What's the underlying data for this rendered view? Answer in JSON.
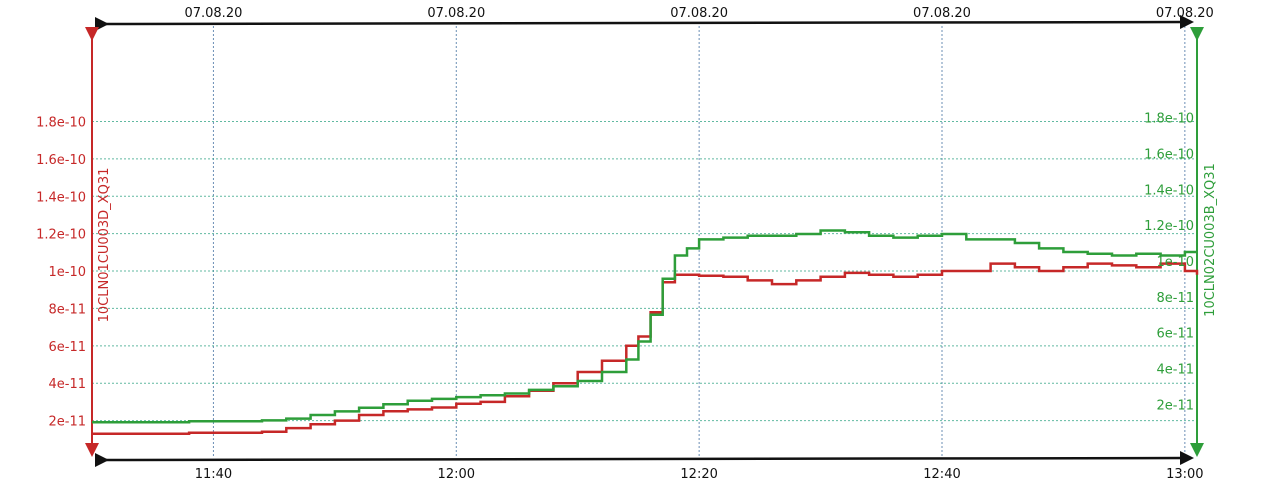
{
  "chart_data": {
    "type": "line",
    "title": "",
    "grid": true,
    "top_axis_labels": [
      "07.08.20",
      "07.08.20",
      "07.08.20",
      "07.08.20",
      "07.08.20"
    ],
    "x_axis": {
      "ticks": [
        "11:40",
        "12:00",
        "12:20",
        "12:40",
        "13:00"
      ],
      "range": [
        "11:30",
        "13:01"
      ]
    },
    "y_left": {
      "label": "10CLN01CU003D_XQ31",
      "color": "#c62828",
      "range": [
        0,
        2.3e-10
      ],
      "ticks": [
        2e-11,
        4e-11,
        6e-11,
        8e-11,
        1e-10,
        1.2e-10,
        1.4e-10,
        1.6e-10,
        1.8e-10
      ],
      "tick_labels": [
        "2e-11",
        "4e-11",
        "6e-11",
        "8e-11",
        "1e-10",
        "1.2e-10",
        "1.4e-10",
        "1.6e-10",
        "1.8e-10"
      ]
    },
    "y_right": {
      "label": "10CLN02CU003B_XQ31",
      "color": "#2e9e3a",
      "range": [
        -1e-11,
        2.3e-10
      ],
      "ticks": [
        2e-11,
        4e-11,
        6e-11,
        8e-11,
        1e-10,
        1.2e-10,
        1.4e-10,
        1.6e-10,
        1.8e-10
      ],
      "tick_labels": [
        "2e-11",
        "4e-11",
        "6e-11",
        "8e-11",
        "1e-10",
        "1.2e-10",
        "1.4e-10",
        "1.6e-10",
        "1.8e-10"
      ]
    },
    "series": [
      {
        "name": "10CLN01CU003D_XQ31",
        "axis": "left",
        "color": "#c62828",
        "x": [
          "11:30",
          "11:38",
          "11:44",
          "11:46",
          "11:48",
          "11:50",
          "11:52",
          "11:54",
          "11:56",
          "11:58",
          "12:00",
          "12:02",
          "12:04",
          "12:06",
          "12:08",
          "12:10",
          "12:12",
          "12:14",
          "12:15",
          "12:16",
          "12:17",
          "12:18",
          "12:19",
          "12:20",
          "12:22",
          "12:24",
          "12:26",
          "12:28",
          "12:30",
          "12:32",
          "12:34",
          "12:36",
          "12:38",
          "12:40",
          "12:42",
          "12:44",
          "12:46",
          "12:48",
          "12:50",
          "12:52",
          "12:54",
          "12:56",
          "12:58",
          "13:00",
          "13:01"
        ],
        "values": [
          1.3e-11,
          1.35e-11,
          1.4e-11,
          1.6e-11,
          1.8e-11,
          2e-11,
          2.3e-11,
          2.5e-11,
          2.6e-11,
          2.7e-11,
          2.9e-11,
          3e-11,
          3.3e-11,
          3.6e-11,
          4e-11,
          4.6e-11,
          5.2e-11,
          6e-11,
          6.5e-11,
          7.8e-11,
          9.4e-11,
          9.8e-11,
          9.8e-11,
          9.75e-11,
          9.7e-11,
          9.5e-11,
          9.3e-11,
          9.5e-11,
          9.7e-11,
          9.9e-11,
          9.8e-11,
          9.7e-11,
          9.8e-11,
          1e-10,
          1e-10,
          1.04e-10,
          1.02e-10,
          1e-10,
          1.02e-10,
          1.04e-10,
          1.03e-10,
          1.02e-10,
          1.04e-10,
          1e-10,
          9.8e-11
        ]
      },
      {
        "name": "10CLN02CU003B_XQ31",
        "axis": "right",
        "color": "#2e9e3a",
        "x": [
          "11:30",
          "11:38",
          "11:44",
          "11:46",
          "11:48",
          "11:50",
          "11:52",
          "11:54",
          "11:56",
          "11:58",
          "12:00",
          "12:02",
          "12:04",
          "12:06",
          "12:08",
          "12:10",
          "12:12",
          "12:14",
          "12:15",
          "12:16",
          "12:17",
          "12:18",
          "12:19",
          "12:20",
          "12:22",
          "12:24",
          "12:26",
          "12:28",
          "12:30",
          "12:32",
          "12:34",
          "12:36",
          "12:38",
          "12:40",
          "12:42",
          "12:44",
          "12:46",
          "12:48",
          "12:50",
          "12:52",
          "12:54",
          "12:56",
          "12:58",
          "13:00",
          "13:01"
        ],
        "values": [
          1e-11,
          1.05e-11,
          1.1e-11,
          1.2e-11,
          1.4e-11,
          1.6e-11,
          1.8e-11,
          2e-11,
          2.2e-11,
          2.3e-11,
          2.4e-11,
          2.5e-11,
          2.6e-11,
          2.8e-11,
          3e-11,
          3.3e-11,
          3.8e-11,
          4.5e-11,
          5.5e-11,
          7e-11,
          9e-11,
          1.03e-10,
          1.07e-10,
          1.12e-10,
          1.13e-10,
          1.14e-10,
          1.14e-10,
          1.15e-10,
          1.17e-10,
          1.16e-10,
          1.14e-10,
          1.13e-10,
          1.14e-10,
          1.15e-10,
          1.12e-10,
          1.12e-10,
          1.1e-10,
          1.07e-10,
          1.05e-10,
          1.04e-10,
          1.03e-10,
          1.04e-10,
          1.03e-10,
          1.05e-10,
          1.05e-10
        ]
      }
    ]
  }
}
